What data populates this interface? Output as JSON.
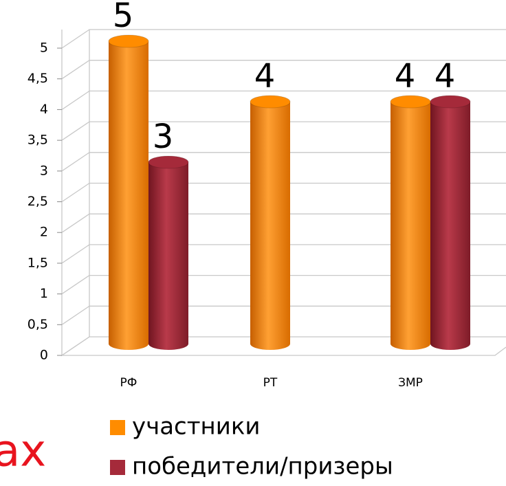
{
  "chart_data": {
    "type": "bar3d",
    "categories": [
      "РФ",
      "РТ",
      "ЗМР"
    ],
    "series": [
      {
        "name": "участники",
        "color": "#ff8c00",
        "values": [
          5,
          4,
          4
        ]
      },
      {
        "name": "победители/призеры",
        "color": "#a52a3a",
        "values": [
          3,
          null,
          4
        ]
      }
    ],
    "ylim": [
      0,
      5
    ],
    "yticks": [
      0,
      {
        "value": 0.5,
        "label": "0,5"
      },
      1,
      {
        "value": 1.5,
        "label": "1,5"
      },
      2,
      {
        "value": 2.5,
        "label": "2,5"
      },
      3,
      {
        "value": 3.5,
        "label": "3,5"
      },
      4,
      {
        "value": 4.5,
        "label": "4,5"
      },
      5
    ],
    "grid": true,
    "annotation": "ах"
  }
}
